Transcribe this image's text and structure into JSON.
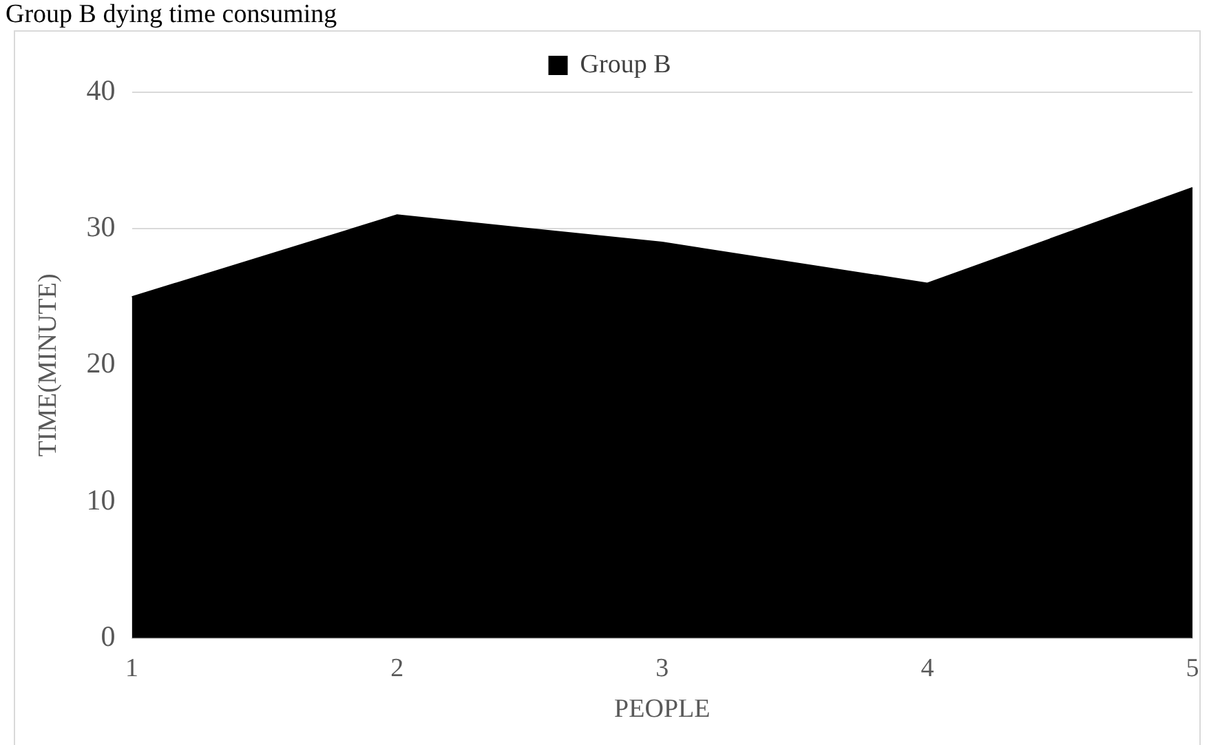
{
  "chart_data": {
    "type": "area",
    "title": "Group B dying time consuming",
    "categories": [
      "1",
      "2",
      "3",
      "4",
      "5"
    ],
    "series": [
      {
        "name": "Group B",
        "color": "#000000",
        "values": [
          25,
          31,
          29,
          26,
          33
        ]
      }
    ],
    "xlabel": "PEOPLE",
    "ylabel": "TIME(MINUTE)",
    "ylim": [
      0,
      40
    ],
    "yticks": [
      0,
      10,
      20,
      30,
      40
    ],
    "grid": "y",
    "legend": "top"
  }
}
